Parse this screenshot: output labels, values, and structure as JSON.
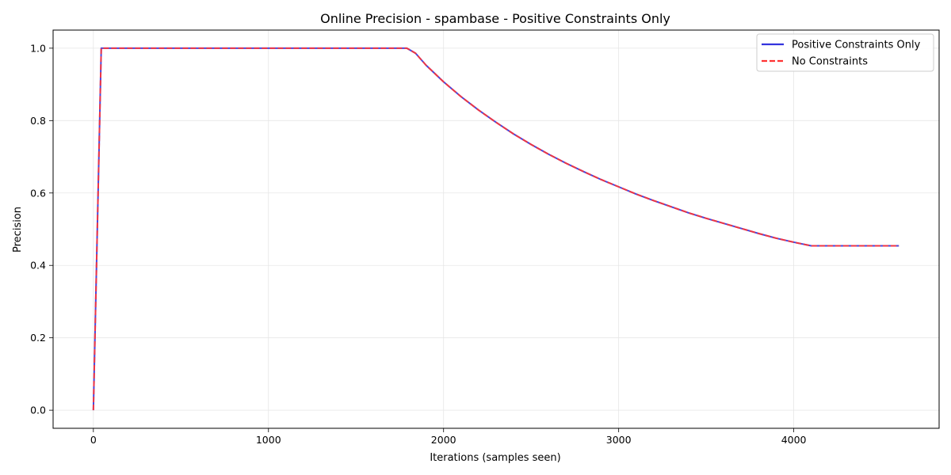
{
  "chart_data": {
    "type": "line",
    "title": "Online Precision - spambase - Positive Constraints Only",
    "xlabel": "Iterations (samples seen)",
    "ylabel": "Precision",
    "xlim": [
      -230,
      4830
    ],
    "ylim": [
      -0.05,
      1.05
    ],
    "xticks": [
      0,
      1000,
      2000,
      3000,
      4000
    ],
    "yticks": [
      0.0,
      0.2,
      0.4,
      0.6,
      0.8,
      1.0
    ],
    "xtick_labels": [
      "0",
      "1000",
      "2000",
      "3000",
      "4000"
    ],
    "ytick_labels": [
      "0.0",
      "0.2",
      "0.4",
      "0.6",
      "0.8",
      "1.0"
    ],
    "grid": true,
    "legend_position": "top-right",
    "x": [
      0,
      45,
      100,
      500,
      1000,
      1500,
      1790,
      1840,
      1900,
      2000,
      2100,
      2200,
      2300,
      2400,
      2500,
      2600,
      2700,
      2800,
      2900,
      3000,
      3100,
      3200,
      3300,
      3400,
      3500,
      3600,
      3700,
      3800,
      3900,
      4000,
      4100,
      4200,
      4300,
      4400,
      4500,
      4600
    ],
    "series": [
      {
        "name": "Positive Constraints Only",
        "color": "#3333dd",
        "style": "solid",
        "values": [
          0.0,
          1.0,
          1.0,
          1.0,
          1.0,
          1.0,
          1.0,
          0.986,
          0.953,
          0.907,
          0.866,
          0.829,
          0.795,
          0.763,
          0.734,
          0.707,
          0.682,
          0.659,
          0.637,
          0.617,
          0.597,
          0.579,
          0.562,
          0.545,
          0.53,
          0.516,
          0.502,
          0.488,
          0.475,
          0.464,
          0.454,
          0.454,
          0.454,
          0.454,
          0.454,
          0.454
        ]
      },
      {
        "name": "No Constraints",
        "color": "#ff3333",
        "style": "dashed",
        "values": [
          0.0,
          1.0,
          1.0,
          1.0,
          1.0,
          1.0,
          1.0,
          0.986,
          0.953,
          0.907,
          0.866,
          0.829,
          0.795,
          0.763,
          0.734,
          0.707,
          0.682,
          0.659,
          0.637,
          0.617,
          0.597,
          0.579,
          0.562,
          0.545,
          0.53,
          0.516,
          0.502,
          0.488,
          0.475,
          0.464,
          0.454,
          0.454,
          0.454,
          0.454,
          0.454,
          0.454
        ]
      }
    ]
  }
}
